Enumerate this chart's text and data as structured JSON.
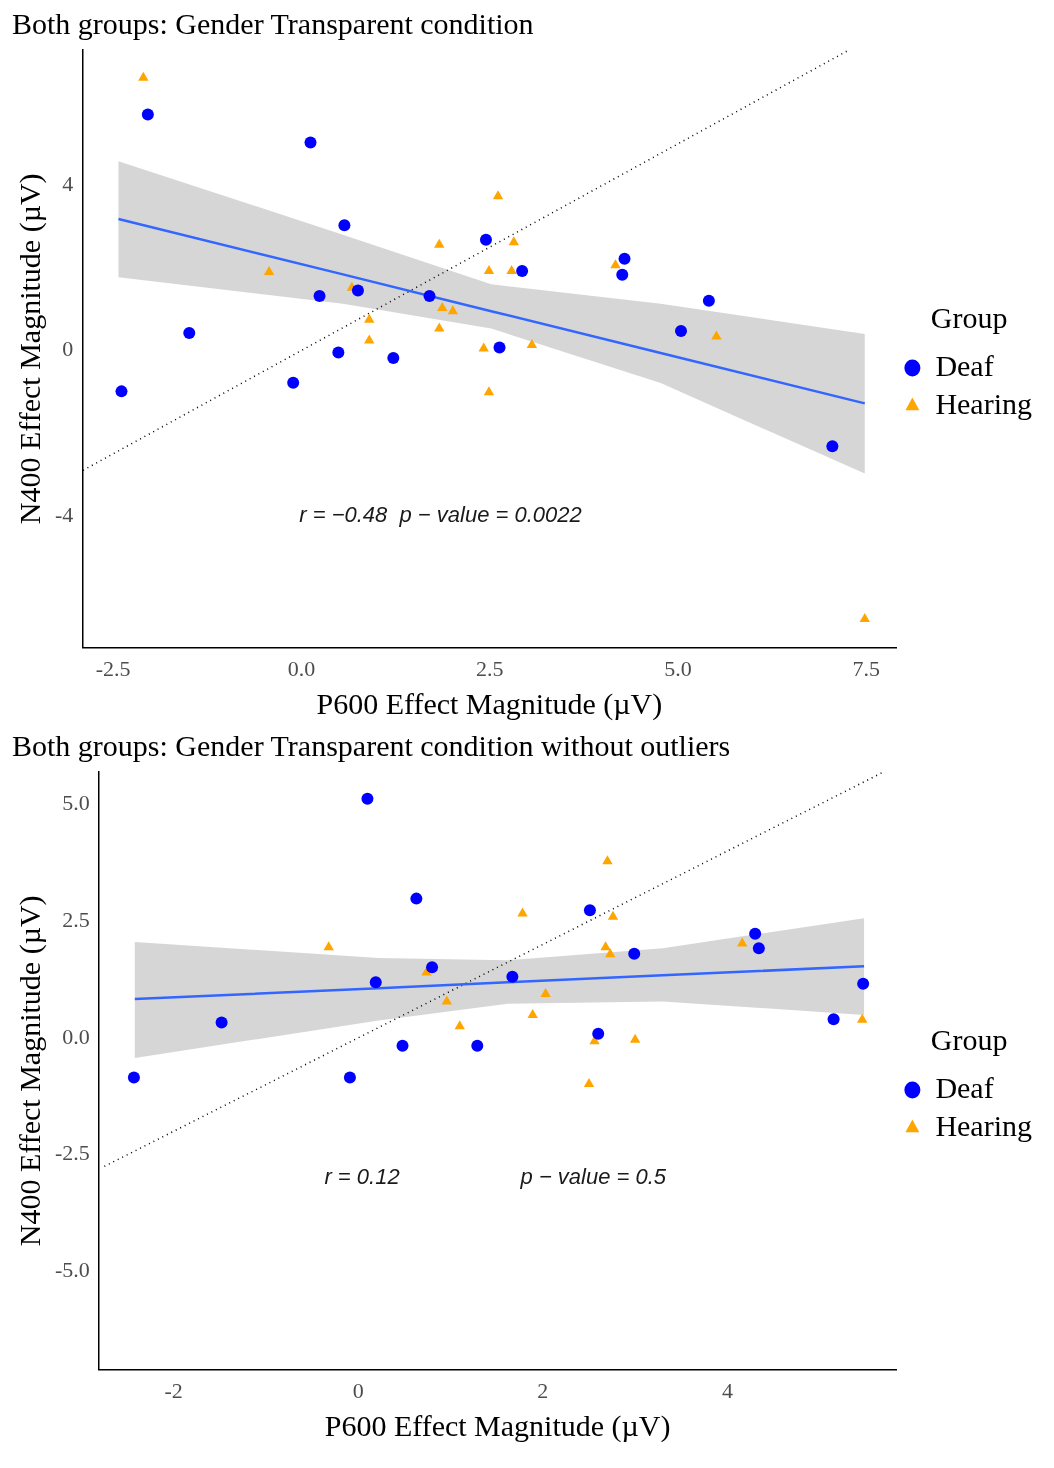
{
  "chart_data": [
    {
      "type": "scatter",
      "title": "Both groups: Gender Transparent condition",
      "xlabel": "P600 Effect Magnitude (µV)",
      "ylabel": "N400 Effect Magnitude (µV)",
      "legend_title": "Group",
      "legend": "right",
      "grid": false,
      "xlim": [
        -2.91,
        7.9
      ],
      "ylim": [
        -7.19,
        7.27
      ],
      "xticks": [
        {
          "value": -2.5,
          "label": "-2.5"
        },
        {
          "value": 0,
          "label": "0.0"
        },
        {
          "value": 2.5,
          "label": "2.5"
        },
        {
          "value": 5,
          "label": "5.0"
        },
        {
          "value": 7.5,
          "label": "7.5"
        }
      ],
      "yticks": [
        -4,
        0,
        4
      ],
      "annotations": [
        "r = −0.48  p − value = 0.0022"
      ],
      "series": [
        {
          "name": "Deaf",
          "type": "scatter",
          "marker": "circle",
          "color": "#0000ff",
          "x": [
            -2.39,
            -2.04,
            0.12,
            -1.49,
            -0.11,
            0.24,
            0.57,
            0.75,
            0.49,
            1.22,
            1.7,
            2.45,
            2.93,
            2.63,
            4.29,
            4.26,
            5.04,
            5.41,
            7.05
          ],
          "values": [
            -0.99,
            5.71,
            5.03,
            0.42,
            -0.78,
            1.32,
            3.03,
            1.45,
            -0.05,
            -0.18,
            1.32,
            2.68,
            1.92,
            0.07,
            2.22,
            1.83,
            0.47,
            1.2,
            -2.32
          ]
        },
        {
          "name": "Hearing",
          "type": "scatter",
          "marker": "triangle",
          "color": "#ffa500",
          "x": [
            -2.1,
            -0.43,
            0.67,
            0.9,
            0.9,
            1.83,
            1.87,
            2.01,
            1.83,
            2.61,
            2.82,
            2.49,
            2.79,
            2.42,
            2.49,
            3.06,
            4.17,
            5.51,
            7.48
          ],
          "values": [
            6.6,
            1.9,
            1.52,
            0.74,
            0.24,
            2.56,
            1.03,
            0.95,
            0.53,
            3.73,
            2.62,
            1.92,
            1.92,
            0.05,
            -1.01,
            0.13,
            2.06,
            0.34,
            -6.5
          ]
        },
        {
          "type": "line",
          "marker": "none",
          "line_style": "solid",
          "color": "#3366ff",
          "x": [
            -2.43,
            0.55,
            2.52,
            4.77,
            7.48
          ],
          "values": [
            3.18,
            1.84,
            0.95,
            -0.06,
            -1.28
          ],
          "lower": [
            1.77,
            1.13,
            0.53,
            -0.79,
            -2.98
          ],
          "upper": [
            4.58,
            2.8,
            1.6,
            1.13,
            0.4
          ]
        },
        {
          "type": "line",
          "marker": "none",
          "line_style": "dotted",
          "color": "#000000",
          "x": [
            -2.9,
            7.27
          ],
          "values": [
            -2.9,
            7.27
          ]
        }
      ]
    },
    {
      "type": "scatter",
      "title": "Both groups: Gender Transparent condition without outliers",
      "xlabel": "P600 Effect Magnitude (µV)",
      "ylabel": "N400 Effect Magnitude (µV)",
      "legend_title": "Group",
      "legend": "right",
      "grid": false,
      "xlim": [
        -2.81,
        5.83
      ],
      "ylim": [
        -7.1,
        5.69
      ],
      "xticks": [
        -2,
        0,
        2,
        4
      ],
      "yticks": [
        {
          "value": -5,
          "label": "-5.0"
        },
        {
          "value": -2.5,
          "label": "-2.5"
        },
        {
          "value": 0,
          "label": "0.0"
        },
        {
          "value": 2.5,
          "label": "2.5"
        },
        {
          "value": 5,
          "label": "5.0"
        }
      ],
      "annotations": [
        "r = 0.12",
        "p − value = 0.5"
      ],
      "series": [
        {
          "name": "Deaf",
          "type": "scatter",
          "marker": "circle",
          "color": "#0000ff",
          "x": [
            -2.43,
            0.1,
            -1.48,
            0.63,
            0.19,
            0.8,
            0.48,
            -0.09,
            1.29,
            1.67,
            2.51,
            2.6,
            2.99,
            4.3,
            4.34,
            5.15,
            5.47
          ],
          "values": [
            -0.85,
            5.12,
            0.33,
            2.98,
            1.19,
            1.51,
            -0.17,
            -0.85,
            -0.17,
            1.31,
            2.73,
            0.09,
            1.8,
            2.23,
            1.92,
            0.4,
            1.16
          ]
        },
        {
          "name": "Hearing",
          "type": "scatter",
          "marker": "triangle",
          "color": "#ffa500",
          "x": [
            -0.32,
            0.74,
            0.96,
            1.1,
            1.78,
            2.01,
            2.03,
            1.89,
            2.7,
            2.76,
            2.68,
            2.73,
            2.56,
            3.0,
            2.5,
            4.16,
            5.46
          ],
          "values": [
            1.94,
            1.4,
            0.78,
            0.25,
            2.66,
            null,
            0.94,
            0.49,
            3.78,
            2.59,
            1.94,
            1.79,
            -0.07,
            -0.04,
            -0.99,
            2.02,
            0.39
          ]
        },
        {
          "type": "line",
          "marker": "none",
          "line_style": "solid",
          "color": "#3366ff",
          "x": [
            -2.42,
            0.22,
            1.62,
            3.3,
            5.48
          ],
          "values": [
            0.83,
            1.06,
            1.19,
            1.34,
            1.53
          ],
          "lower": [
            -0.43,
            0.37,
            0.73,
            0.78,
            0.49
          ],
          "upper": [
            2.05,
            1.71,
            1.66,
            1.92,
            2.56
          ]
        },
        {
          "type": "line",
          "marker": "none",
          "line_style": "dotted",
          "color": "#000000",
          "x": [
            -2.75,
            5.69
          ],
          "values": [
            -2.75,
            5.69
          ]
        }
      ]
    }
  ]
}
